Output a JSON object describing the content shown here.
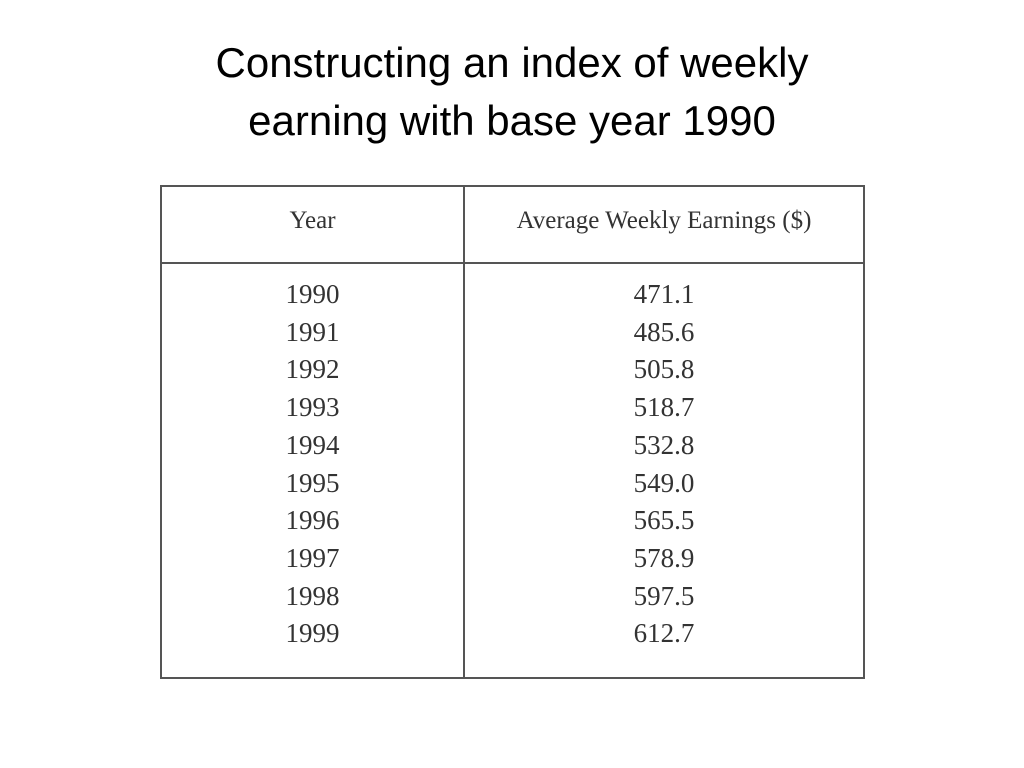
{
  "title": "Constructing an index of weekly earning with base year 1990",
  "table": {
    "header": [
      "Year",
      "Average Weekly Earnings ($)"
    ],
    "rows": [
      [
        "1990",
        "471.1"
      ],
      [
        "1991",
        "485.6"
      ],
      [
        "1992",
        "505.8"
      ],
      [
        "1993",
        "518.7"
      ],
      [
        "1994",
        "532.8"
      ],
      [
        "1995",
        "549.0"
      ],
      [
        "1996",
        "565.5"
      ],
      [
        "1997",
        "578.9"
      ],
      [
        "1998",
        "597.5"
      ],
      [
        "1999",
        "612.7"
      ]
    ]
  }
}
